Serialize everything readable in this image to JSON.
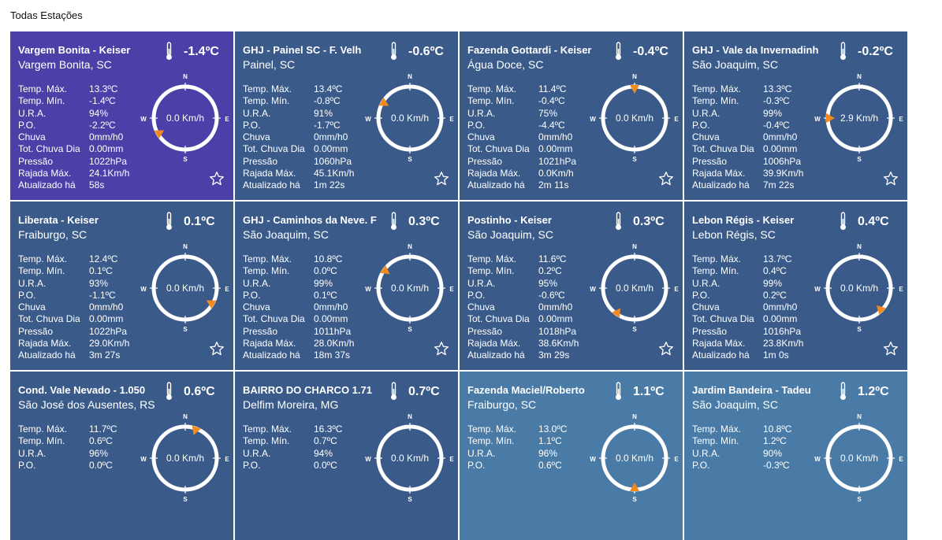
{
  "page": {
    "section_title": "Todas Estações"
  },
  "labels": {
    "temp_max": "Temp. Máx.",
    "temp_min": "Temp. Mín.",
    "ura": "U.R.A.",
    "po": "P.O.",
    "chuva": "Chuva",
    "tot_chuva": "Tot. Chuva Dia",
    "pressao": "Pressão",
    "rajada": "Rajada Máx.",
    "atualizado": "Atualizado há"
  },
  "compass_labels": {
    "n": "N",
    "s": "S",
    "e": "E",
    "w": "W"
  },
  "icons": {
    "thermometer": "thermometer-icon",
    "favorite": "star-outline-icon",
    "wind_pointer": "wind-direction-arrow-icon"
  },
  "colors": {
    "highlight": "#4a40a8",
    "card_dark": "#3a5b8a",
    "card_light": "#4a7ba6",
    "pointer": "#f28a1e"
  },
  "stations": [
    {
      "name": "Vargem Bonita - Keiser",
      "location": "Vargem Bonita, SC",
      "temp": "-1.4ºC",
      "temp_max": "13.3ºC",
      "temp_min": "-1.4ºC",
      "ura": "94%",
      "po": "-2.2ºC",
      "chuva": "0mm/h0",
      "tot_chuva": "0.00mm",
      "pressao": "1022hPa",
      "rajada": "24.1Km/h",
      "atualizado": "58s",
      "wind": "0.0 Km/h",
      "dir_deg": 240,
      "highlight": true
    },
    {
      "name": "GHJ - Painel SC - F. Velh",
      "location": "Painel, SC",
      "temp": "-0.6ºC",
      "temp_max": "13.4ºC",
      "temp_min": "-0.8ºC",
      "ura": "91%",
      "po": "-1.7ºC",
      "chuva": "0mm/h0",
      "tot_chuva": "0.00mm",
      "pressao": "1060hPa",
      "rajada": "45.1Km/h",
      "atualizado": "1m 22s",
      "wind": "0.0 Km/h",
      "dir_deg": 300
    },
    {
      "name": "Fazenda Gottardi - Keiser",
      "location": "Água Doce, SC",
      "temp": "-0.4ºC",
      "temp_max": "11.4ºC",
      "temp_min": "-0.4ºC",
      "ura": "75%",
      "po": "-4.4ºC",
      "chuva": "0mm/h0",
      "tot_chuva": "0.00mm",
      "pressao": "1021hPa",
      "rajada": "0.0Km/h",
      "atualizado": "2m 11s",
      "wind": "0.0 Km/h",
      "dir_deg": 0
    },
    {
      "name": "GHJ - Vale da Invernadinh",
      "location": "São Joaquim, SC",
      "temp": "-0.2ºC",
      "temp_max": "13.3ºC",
      "temp_min": "-0.3ºC",
      "ura": "99%",
      "po": "-0.4ºC",
      "chuva": "0mm/h0",
      "tot_chuva": "0.00mm",
      "pressao": "1006hPa",
      "rajada": "39.9Km/h",
      "atualizado": "7m 22s",
      "wind": "2.9 Km/h",
      "dir_deg": 270
    },
    {
      "name": "Liberata - Keiser",
      "location": "Fraiburgo, SC",
      "temp": "0.1ºC",
      "temp_max": "12.4ºC",
      "temp_min": "0.1ºC",
      "ura": "93%",
      "po": "-1.1ºC",
      "chuva": "0mm/h0",
      "tot_chuva": "0.00mm",
      "pressao": "1022hPa",
      "rajada": "29.0Km/h",
      "atualizado": "3m 27s",
      "wind": "0.0 Km/h",
      "dir_deg": 120
    },
    {
      "name": "GHJ - Caminhos da Neve. F",
      "location": "São Joaquim, SC",
      "temp": "0.3ºC",
      "temp_max": "10.8ºC",
      "temp_min": "0.0ºC",
      "ura": "99%",
      "po": "0.1ºC",
      "chuva": "0mm/h0",
      "tot_chuva": "0.00mm",
      "pressao": "1011hPa",
      "rajada": "28.0Km/h",
      "atualizado": "18m 37s",
      "wind": "0.0 Km/h",
      "dir_deg": 305
    },
    {
      "name": "Postinho - Keiser",
      "location": "São Joaquim, SC",
      "temp": "0.3ºC",
      "temp_max": "11.6ºC",
      "temp_min": "0.2ºC",
      "ura": "95%",
      "po": "-0.6ºC",
      "chuva": "0mm/h0",
      "tot_chuva": "0.00mm",
      "pressao": "1018hPa",
      "rajada": "38.6Km/h",
      "atualizado": "3m 29s",
      "wind": "0.0 Km/h",
      "dir_deg": 215
    },
    {
      "name": "Lebon Régis - Keiser",
      "location": "Lebon Régis, SC",
      "temp": "0.4ºC",
      "temp_max": "13.7ºC",
      "temp_min": "0.4ºC",
      "ura": "99%",
      "po": "0.2ºC",
      "chuva": "0mm/h0",
      "tot_chuva": "0.00mm",
      "pressao": "1016hPa",
      "rajada": "23.8Km/h",
      "atualizado": "1m 0s",
      "wind": "0.0 Km/h",
      "dir_deg": 135
    },
    {
      "name": "Cond. Vale Nevado - 1.050",
      "location": "São José dos Ausentes, RS",
      "temp": "0.6ºC",
      "temp_max": "11.7ºC",
      "temp_min": "0.6ºC",
      "ura": "96%",
      "po": "0.0ºC",
      "wind": "0.0 Km/h",
      "dir_deg": 20
    },
    {
      "name": "BAIRRO DO CHARCO 1.71",
      "location": "Delfim Moreira, MG",
      "temp": "0.7ºC",
      "temp_max": "16.3ºC",
      "temp_min": "0.7ºC",
      "ura": "94%",
      "po": "0.0ºC",
      "wind": "0.0 Km/h",
      "dir_deg": null
    },
    {
      "name": "Fazenda Maciel/Roberto",
      "location": "Fraiburgo, SC",
      "temp": "1.1ºC",
      "temp_max": "13.0ºC",
      "temp_min": "1.1ºC",
      "ura": "96%",
      "po": "0.6ºC",
      "wind": "0.0 Km/h",
      "dir_deg": 180,
      "light": true
    },
    {
      "name": "Jardim Bandeira - Tadeu",
      "location": "São Joaquim, SC",
      "temp": "1.2ºC",
      "temp_max": "10.8ºC",
      "temp_min": "1.2ºC",
      "ura": "90%",
      "po": "-0.3ºC",
      "wind": "0.0 Km/h",
      "dir_deg": null,
      "light": true
    }
  ]
}
